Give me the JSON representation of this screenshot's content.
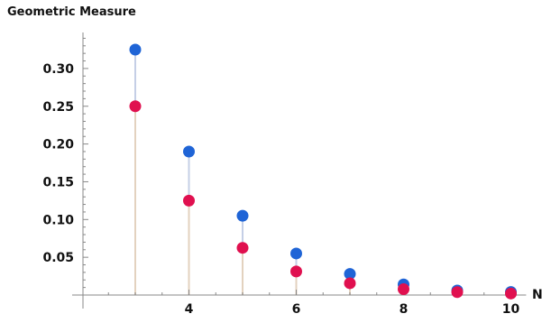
{
  "chart_data": {
    "type": "scatter",
    "title": "Geometric Measure",
    "xlabel": "N",
    "ylabel": "",
    "xlim": [
      2,
      10.2
    ],
    "ylim": [
      0,
      0.345
    ],
    "x_ticks": [
      4,
      6,
      8,
      10
    ],
    "y_ticks": [
      0.05,
      0.1,
      0.15,
      0.2,
      0.25,
      0.3
    ],
    "y_tick_labels": [
      "0.05",
      "0.10",
      "0.15",
      "0.20",
      "0.25",
      "0.30"
    ],
    "grid": false,
    "legend": "none",
    "series": [
      {
        "color": "#1f64d6",
        "stem_color": "#c5cfe6",
        "x": [
          3,
          4,
          5,
          6,
          7,
          8,
          9,
          10
        ],
        "y": [
          0.325,
          0.19,
          0.105,
          0.055,
          0.028,
          0.014,
          0.006,
          0.004
        ]
      },
      {
        "color": "#e0104f",
        "stem_color": "#e3d2bf",
        "x": [
          3,
          4,
          5,
          6,
          7,
          8,
          9,
          10
        ],
        "y": [
          0.25,
          0.125,
          0.0625,
          0.03125,
          0.0156,
          0.0078,
          0.0039,
          0.002
        ]
      }
    ]
  }
}
